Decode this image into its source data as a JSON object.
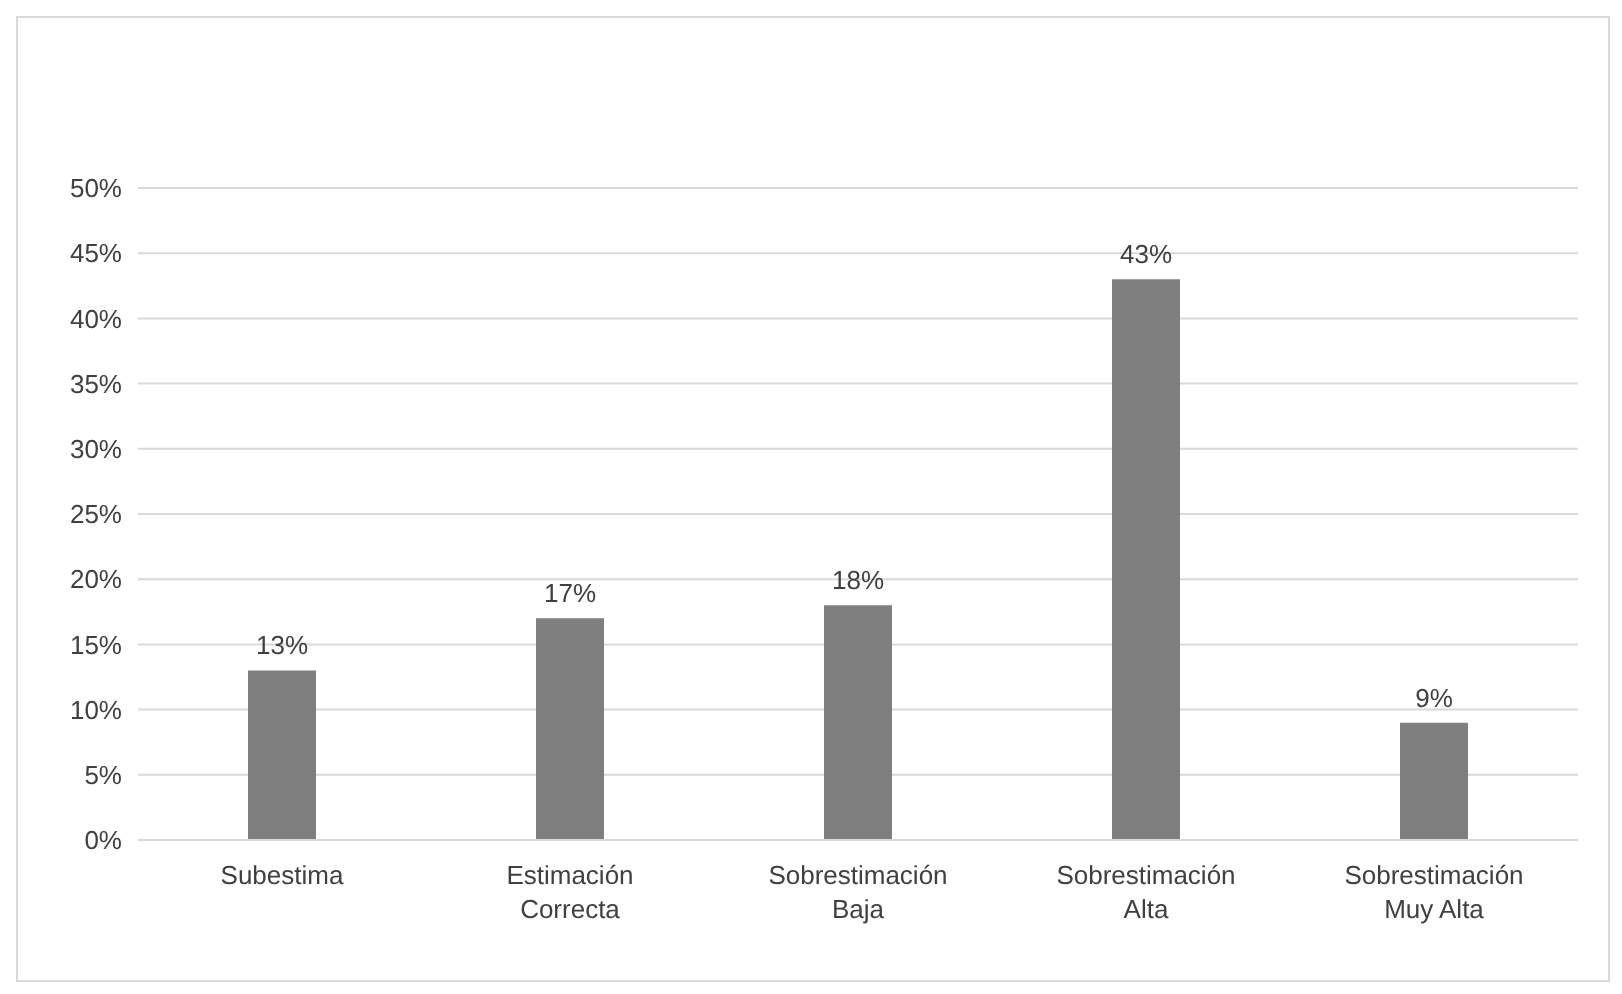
{
  "chart_data": {
    "type": "bar",
    "categories": [
      "Subestima",
      "Estimación Correcta",
      "Sobrestimación Baja",
      "Sobrestimación Alta",
      "Sobrestimación Muy Alta"
    ],
    "values": [
      13,
      17,
      18,
      43,
      9
    ],
    "value_labels": [
      "13%",
      "17%",
      "18%",
      "43%",
      "9%"
    ],
    "color": "#7f7f7f",
    "ylim": [
      0,
      50
    ],
    "yticks": [
      {
        "value": 0,
        "label": "0%"
      },
      {
        "value": 5,
        "label": "5%"
      },
      {
        "value": 10,
        "label": "10%"
      },
      {
        "value": 15,
        "label": "15%"
      },
      {
        "value": 20,
        "label": "20%"
      },
      {
        "value": 25,
        "label": "25%"
      },
      {
        "value": 30,
        "label": "30%"
      },
      {
        "value": 35,
        "label": "35%"
      },
      {
        "value": 40,
        "label": "40%"
      },
      {
        "value": 45,
        "label": "45%"
      },
      {
        "value": 50,
        "label": "50%"
      }
    ],
    "grid": "y"
  }
}
